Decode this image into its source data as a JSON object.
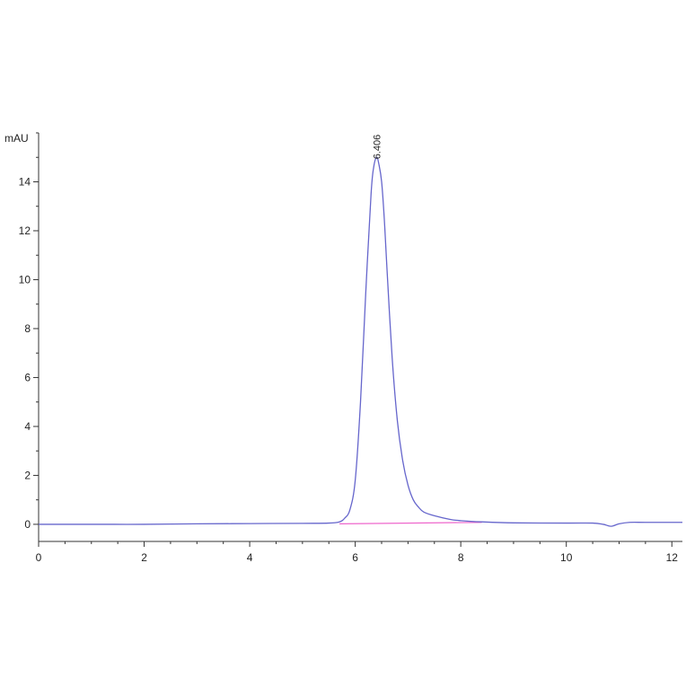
{
  "chart_data": {
    "type": "line",
    "ylabel": "mAU",
    "xlim": [
      0,
      12.2
    ],
    "ylim": [
      -0.7,
      16
    ],
    "x_ticks": [
      0,
      2,
      4,
      6,
      8,
      10,
      12
    ],
    "y_ticks": [
      0,
      2,
      4,
      6,
      8,
      10,
      12,
      14
    ],
    "grid": false,
    "colors": {
      "trace": "#6666cc",
      "baseline": "#ee66cc",
      "axis": "#333333"
    },
    "peak_annotations": [
      {
        "label": "6.406",
        "x": 6.406,
        "y": 15.0
      }
    ],
    "baseline_segment": {
      "x": [
        5.7,
        8.4
      ],
      "y": [
        0.02,
        0.08
      ]
    },
    "series": [
      {
        "x": [
          0,
          1,
          2,
          3,
          4,
          5,
          5.5,
          5.7,
          5.8,
          5.9,
          6.0,
          6.1,
          6.2,
          6.3,
          6.35,
          6.406,
          6.45,
          6.5,
          6.55,
          6.6,
          6.7,
          6.8,
          6.9,
          7.0,
          7.1,
          7.2,
          7.3,
          7.5,
          7.8,
          8.0,
          8.4,
          9,
          10,
          10.5,
          10.7,
          10.85,
          11.0,
          11.2,
          11.5,
          12,
          12.2
        ],
        "y": [
          0.0,
          0.0,
          0.0,
          0.02,
          0.03,
          0.04,
          0.05,
          0.1,
          0.25,
          0.6,
          1.8,
          5.0,
          9.5,
          13.5,
          14.6,
          15.0,
          14.7,
          14.0,
          12.5,
          10.5,
          6.8,
          4.2,
          2.6,
          1.6,
          1.0,
          0.7,
          0.5,
          0.35,
          0.2,
          0.15,
          0.1,
          0.06,
          0.05,
          0.05,
          0.0,
          -0.08,
          0.02,
          0.08,
          0.08,
          0.08,
          0.08
        ]
      }
    ]
  }
}
